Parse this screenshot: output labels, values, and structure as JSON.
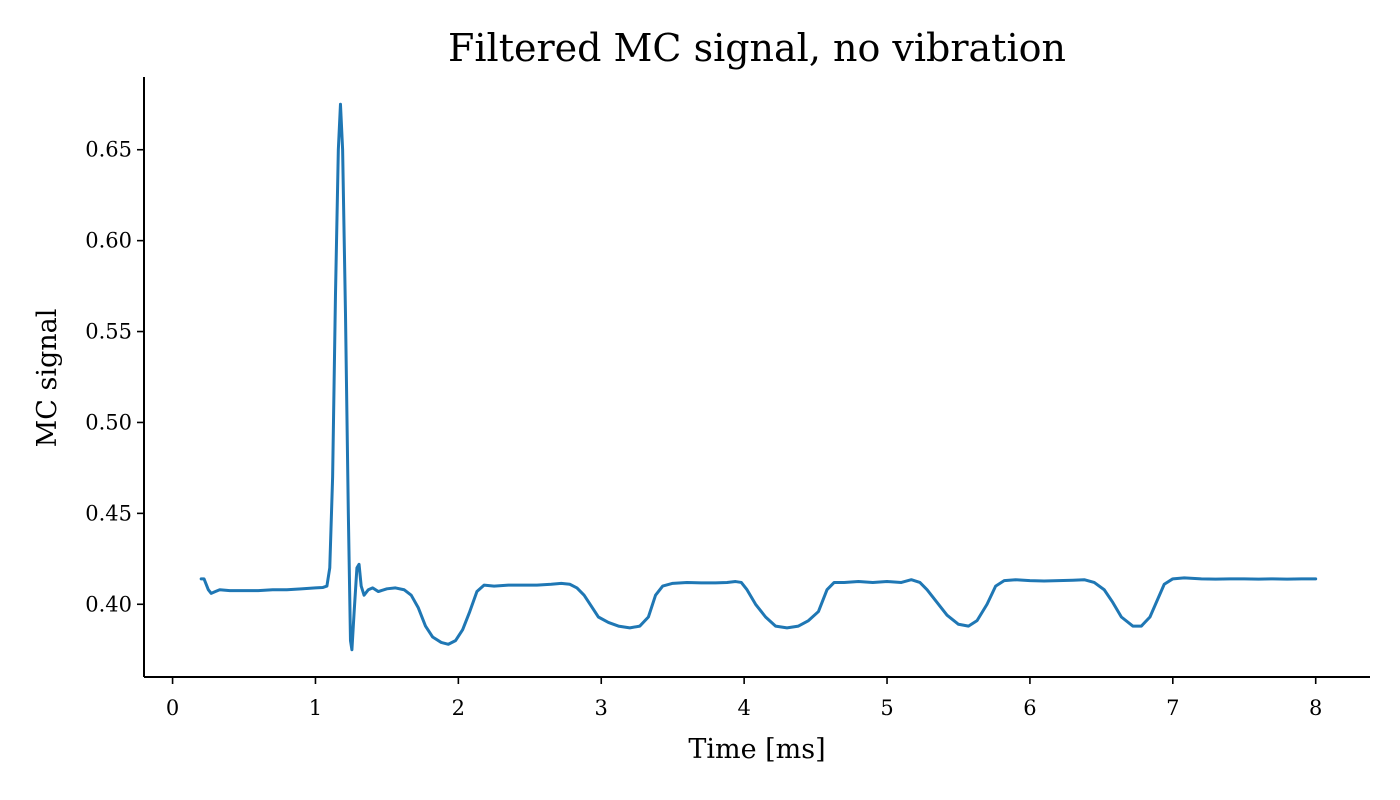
{
  "chart_data": {
    "type": "line",
    "title": "Filtered MC signal, no vibration",
    "xlabel": "Time [ms]",
    "ylabel": "MC signal",
    "xlim": [
      -0.2,
      8.38
    ],
    "ylim": [
      0.36,
      0.69
    ],
    "x_ticks": [
      0,
      1,
      2,
      3,
      4,
      5,
      6,
      7,
      8
    ],
    "y_ticks": [
      0.4,
      0.45,
      0.5,
      0.55,
      0.6,
      0.65
    ],
    "y_tick_decimals": 2,
    "grid": false,
    "legend": "none",
    "series": [
      {
        "color": "#1f77b4",
        "points": [
          [
            0.2,
            0.414
          ],
          [
            0.22,
            0.414
          ],
          [
            0.25,
            0.408
          ],
          [
            0.27,
            0.406
          ],
          [
            0.3,
            0.407
          ],
          [
            0.33,
            0.408
          ],
          [
            0.4,
            0.4075
          ],
          [
            0.5,
            0.4075
          ],
          [
            0.6,
            0.4075
          ],
          [
            0.7,
            0.408
          ],
          [
            0.8,
            0.408
          ],
          [
            0.9,
            0.4085
          ],
          [
            1.0,
            0.409
          ],
          [
            1.05,
            0.4092
          ],
          [
            1.08,
            0.41
          ],
          [
            1.1,
            0.42
          ],
          [
            1.12,
            0.47
          ],
          [
            1.14,
            0.57
          ],
          [
            1.16,
            0.65
          ],
          [
            1.175,
            0.675
          ],
          [
            1.19,
            0.65
          ],
          [
            1.21,
            0.56
          ],
          [
            1.23,
            0.45
          ],
          [
            1.245,
            0.38
          ],
          [
            1.255,
            0.375
          ],
          [
            1.27,
            0.395
          ],
          [
            1.29,
            0.42
          ],
          [
            1.305,
            0.422
          ],
          [
            1.32,
            0.41
          ],
          [
            1.34,
            0.405
          ],
          [
            1.37,
            0.408
          ],
          [
            1.4,
            0.409
          ],
          [
            1.44,
            0.407
          ],
          [
            1.5,
            0.4085
          ],
          [
            1.56,
            0.409
          ],
          [
            1.62,
            0.408
          ],
          [
            1.67,
            0.405
          ],
          [
            1.72,
            0.398
          ],
          [
            1.77,
            0.388
          ],
          [
            1.82,
            0.382
          ],
          [
            1.88,
            0.379
          ],
          [
            1.93,
            0.378
          ],
          [
            1.98,
            0.38
          ],
          [
            2.03,
            0.386
          ],
          [
            2.08,
            0.396
          ],
          [
            2.13,
            0.407
          ],
          [
            2.18,
            0.4105
          ],
          [
            2.25,
            0.41
          ],
          [
            2.35,
            0.4105
          ],
          [
            2.45,
            0.4105
          ],
          [
            2.55,
            0.4105
          ],
          [
            2.65,
            0.411
          ],
          [
            2.72,
            0.4115
          ],
          [
            2.78,
            0.411
          ],
          [
            2.83,
            0.409
          ],
          [
            2.88,
            0.405
          ],
          [
            2.93,
            0.399
          ],
          [
            2.98,
            0.393
          ],
          [
            3.05,
            0.39
          ],
          [
            3.12,
            0.388
          ],
          [
            3.2,
            0.387
          ],
          [
            3.27,
            0.388
          ],
          [
            3.33,
            0.393
          ],
          [
            3.38,
            0.405
          ],
          [
            3.43,
            0.41
          ],
          [
            3.5,
            0.4115
          ],
          [
            3.6,
            0.412
          ],
          [
            3.7,
            0.4118
          ],
          [
            3.8,
            0.4118
          ],
          [
            3.88,
            0.412
          ],
          [
            3.94,
            0.4125
          ],
          [
            3.98,
            0.412
          ],
          [
            4.02,
            0.408
          ],
          [
            4.08,
            0.4
          ],
          [
            4.15,
            0.393
          ],
          [
            4.22,
            0.388
          ],
          [
            4.3,
            0.387
          ],
          [
            4.38,
            0.388
          ],
          [
            4.45,
            0.391
          ],
          [
            4.52,
            0.396
          ],
          [
            4.58,
            0.408
          ],
          [
            4.63,
            0.412
          ],
          [
            4.7,
            0.412
          ],
          [
            4.8,
            0.4125
          ],
          [
            4.9,
            0.412
          ],
          [
            5.0,
            0.4125
          ],
          [
            5.1,
            0.412
          ],
          [
            5.17,
            0.4135
          ],
          [
            5.23,
            0.412
          ],
          [
            5.28,
            0.408
          ],
          [
            5.35,
            0.401
          ],
          [
            5.42,
            0.394
          ],
          [
            5.5,
            0.389
          ],
          [
            5.57,
            0.388
          ],
          [
            5.63,
            0.391
          ],
          [
            5.7,
            0.4
          ],
          [
            5.76,
            0.41
          ],
          [
            5.82,
            0.413
          ],
          [
            5.9,
            0.4135
          ],
          [
            6.0,
            0.413
          ],
          [
            6.1,
            0.4128
          ],
          [
            6.2,
            0.413
          ],
          [
            6.3,
            0.4132
          ],
          [
            6.38,
            0.4135
          ],
          [
            6.45,
            0.412
          ],
          [
            6.52,
            0.408
          ],
          [
            6.58,
            0.401
          ],
          [
            6.64,
            0.393
          ],
          [
            6.72,
            0.388
          ],
          [
            6.78,
            0.388
          ],
          [
            6.84,
            0.393
          ],
          [
            6.89,
            0.402
          ],
          [
            6.94,
            0.411
          ],
          [
            7.0,
            0.414
          ],
          [
            7.08,
            0.4145
          ],
          [
            7.2,
            0.414
          ],
          [
            7.3,
            0.4138
          ],
          [
            7.4,
            0.414
          ],
          [
            7.5,
            0.414
          ],
          [
            7.6,
            0.4138
          ],
          [
            7.7,
            0.414
          ],
          [
            7.8,
            0.4138
          ],
          [
            7.9,
            0.414
          ],
          [
            8.0,
            0.414
          ]
        ]
      }
    ]
  }
}
